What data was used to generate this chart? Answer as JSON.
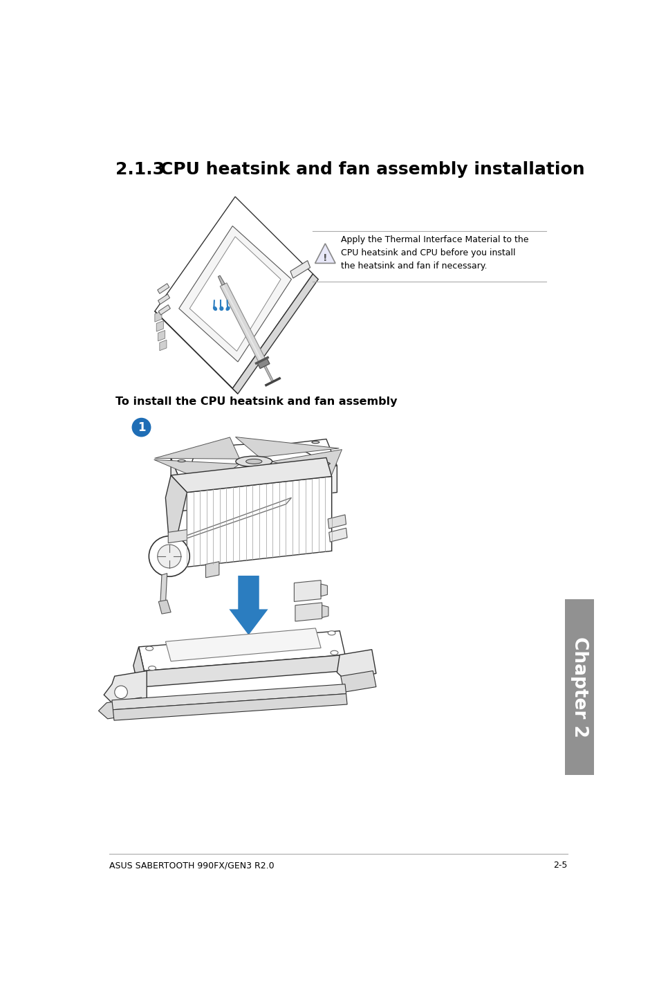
{
  "page_bg": "#ffffff",
  "title_prefix": "2.1.3",
  "title_main": "CPU heatsink and fan assembly installation",
  "subtitle": "To install the CPU heatsink and fan assembly",
  "warning_text": "Apply the Thermal Interface Material to the\nCPU heatsink and CPU before you install\nthe heatsink and fan if necessary.",
  "footer_left": "ASUS SABERTOOTH 990FX/GEN3 R2.0",
  "footer_right": "2-5",
  "chapter_label": "Chapter 2",
  "chapter_bg": "#919191",
  "step_circle_color": "#1e6db5",
  "step_number": "1",
  "arrow_color": "#2b7dc0",
  "line_color": "#000000",
  "text_color": "#000000",
  "title_fontsize": 18,
  "body_fontsize": 10,
  "footer_fontsize": 9,
  "warn_line_color": "#aaaaaa",
  "edge_color": "#333333",
  "light_fill": "#f8f8f8",
  "mid_fill": "#e0e0e0",
  "dark_fill": "#c0c0c0"
}
